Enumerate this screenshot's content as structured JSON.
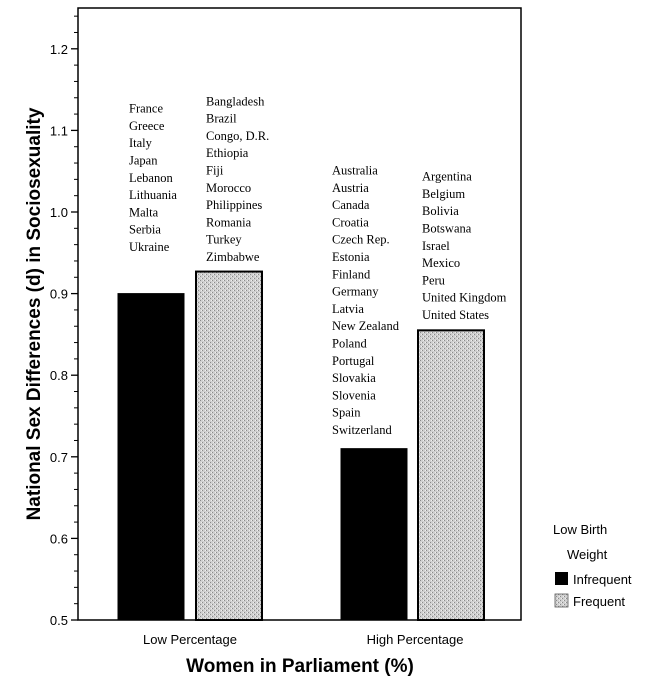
{
  "chart_data": {
    "type": "bar",
    "xlabel": "Women in Parliament (%)",
    "ylabel": "National Sex Differences (d) in Sociosexuality",
    "ylim": [
      0.5,
      1.25
    ],
    "yticks": [
      "0.5",
      "0.6",
      "0.7",
      "0.8",
      "0.9",
      "1.0",
      "1.1",
      "1.2"
    ],
    "categories": [
      "Low Percentage",
      "High Percentage"
    ],
    "legend": {
      "title_line1": "Low Birth",
      "title_line2": "Weight",
      "placement": "right",
      "entries": [
        "Infrequent",
        "Frequent"
      ]
    },
    "series": [
      {
        "name": "Infrequent",
        "color": "#000000",
        "values": [
          0.9,
          0.71
        ]
      },
      {
        "name": "Frequent",
        "color": "#c8c8c8",
        "values": [
          0.927,
          0.855
        ]
      }
    ],
    "country_lists": [
      [
        "France",
        "Greece",
        "Italy",
        "Japan",
        "Lebanon",
        "Lithuania",
        "Malta",
        "Serbia",
        "Ukraine"
      ],
      [
        "Bangladesh",
        "Brazil",
        "Congo, D.R.",
        "Ethiopia",
        "Fiji",
        "Morocco",
        "Philippines",
        "Romania",
        "Turkey",
        "Zimbabwe"
      ],
      [
        "Australia",
        "Austria",
        "Canada",
        "Croatia",
        "Czech Rep.",
        "Estonia",
        "Finland",
        "Germany",
        "Latvia",
        "New Zealand",
        "Poland",
        "Portugal",
        "Slovakia",
        "Slovenia",
        "Spain",
        "Switzerland"
      ],
      [
        "Argentina",
        "Belgium",
        "Bolivia",
        "Botswana",
        "Israel",
        "Mexico",
        "Peru",
        "United Kingdom",
        "United States"
      ]
    ]
  }
}
